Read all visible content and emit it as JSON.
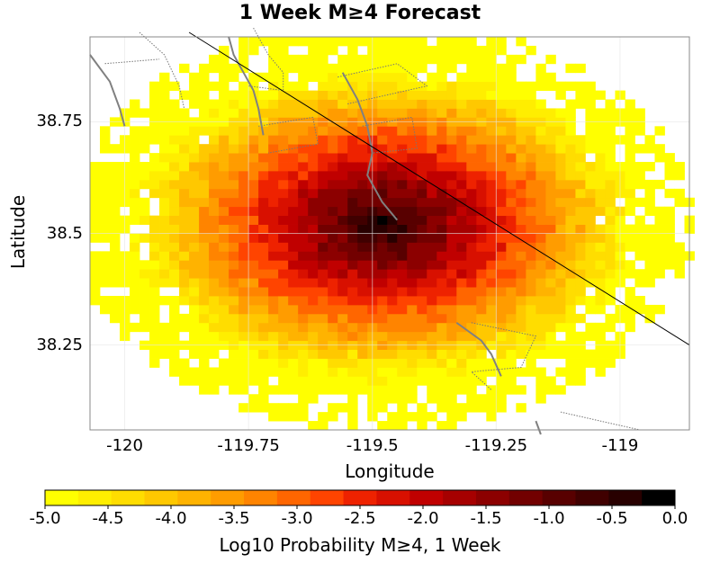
{
  "chart_data": {
    "type": "heatmap",
    "title": "1 Week M≥4 Forecast",
    "xlabel": "Longitude",
    "ylabel": "Latitude",
    "xlim": [
      -120.07,
      -118.86
    ],
    "ylim": [
      38.06,
      38.94
    ],
    "xticks": [
      {
        "value": -120,
        "label": "-120"
      },
      {
        "value": -119.75,
        "label": "-119.75"
      },
      {
        "value": -119.5,
        "label": "-119.5"
      },
      {
        "value": -119.25,
        "label": "-119.25"
      },
      {
        "value": -119,
        "label": "-119"
      }
    ],
    "yticks": [
      {
        "value": 38.75,
        "label": "38.75"
      },
      {
        "value": 38.5,
        "label": "38.5"
      },
      {
        "value": 38.25,
        "label": "38.25"
      }
    ],
    "grid": true,
    "cell_size_deg": 0.02,
    "forecast": {
      "center_lon": -119.48,
      "center_lat": 38.52,
      "peak_log10_prob": -0.3,
      "radius_lon_deg": 0.6,
      "radius_lat_deg": 0.44
    },
    "fault_line": [
      [
        -119.87,
        38.95
      ],
      [
        -118.86,
        38.25
      ]
    ],
    "boundaries_major": [
      [
        [
          -120.07,
          38.9
        ],
        [
          -120.03,
          38.84
        ],
        [
          -120.01,
          38.78
        ],
        [
          -120.0,
          38.74
        ]
      ],
      [
        [
          -119.79,
          38.94
        ],
        [
          -119.78,
          38.9
        ],
        [
          -119.76,
          38.86
        ],
        [
          -119.74,
          38.82
        ],
        [
          -119.73,
          38.78
        ],
        [
          -119.72,
          38.72
        ]
      ],
      [
        [
          -119.56,
          38.86
        ],
        [
          -119.53,
          38.8
        ],
        [
          -119.51,
          38.74
        ],
        [
          -119.5,
          38.68
        ],
        [
          -119.51,
          38.63
        ],
        [
          -119.48,
          38.57
        ],
        [
          -119.45,
          38.53
        ]
      ],
      [
        [
          -119.33,
          38.3
        ],
        [
          -119.28,
          38.26
        ],
        [
          -119.26,
          38.23
        ],
        [
          -119.24,
          38.18
        ]
      ],
      [
        [
          -119.17,
          38.08
        ],
        [
          -119.16,
          38.05
        ]
      ]
    ],
    "boundaries_minor": [
      [
        [
          -119.97,
          38.95
        ],
        [
          -119.92,
          38.9
        ],
        [
          -119.89,
          38.83
        ],
        [
          -119.88,
          38.78
        ]
      ],
      [
        [
          -120.04,
          38.88
        ],
        [
          -119.93,
          38.89
        ]
      ],
      [
        [
          -119.74,
          38.96
        ],
        [
          -119.71,
          38.9
        ],
        [
          -119.68,
          38.86
        ],
        [
          -119.68,
          38.82
        ],
        [
          -119.75,
          38.83
        ]
      ],
      [
        [
          -119.73,
          38.74
        ],
        [
          -119.62,
          38.76
        ],
        [
          -119.61,
          38.7
        ],
        [
          -119.71,
          38.68
        ]
      ],
      [
        [
          -119.57,
          38.85
        ],
        [
          -119.45,
          38.88
        ],
        [
          -119.39,
          38.83
        ],
        [
          -119.55,
          38.79
        ]
      ],
      [
        [
          -119.52,
          38.74
        ],
        [
          -119.42,
          38.76
        ],
        [
          -119.41,
          38.69
        ],
        [
          -119.5,
          38.68
        ]
      ],
      [
        [
          -119.3,
          38.3
        ],
        [
          -119.17,
          38.27
        ],
        [
          -119.2,
          38.2
        ],
        [
          -119.3,
          38.19
        ],
        [
          -119.26,
          38.15
        ]
      ],
      [
        [
          -119.12,
          38.1
        ],
        [
          -119.04,
          38.08
        ],
        [
          -118.96,
          38.06
        ]
      ]
    ]
  },
  "colorbar": {
    "label": "Log10 Probability M≥4, 1 Week",
    "min": -5.0,
    "max": 0.0,
    "ticks": [
      "-5.0",
      "-4.5",
      "-4.0",
      "-3.5",
      "-3.0",
      "-2.5",
      "-2.0",
      "-1.5",
      "-1.0",
      "-0.5",
      "0.0"
    ],
    "colors": [
      "#ffff00",
      "#ffee00",
      "#ffdd00",
      "#ffc800",
      "#ffb300",
      "#ff9c00",
      "#ff8400",
      "#ff6600",
      "#ff4400",
      "#ee2200",
      "#d81000",
      "#c00000",
      "#a60000",
      "#8c0000",
      "#720000",
      "#580000",
      "#400000",
      "#280000",
      "#000000"
    ]
  }
}
